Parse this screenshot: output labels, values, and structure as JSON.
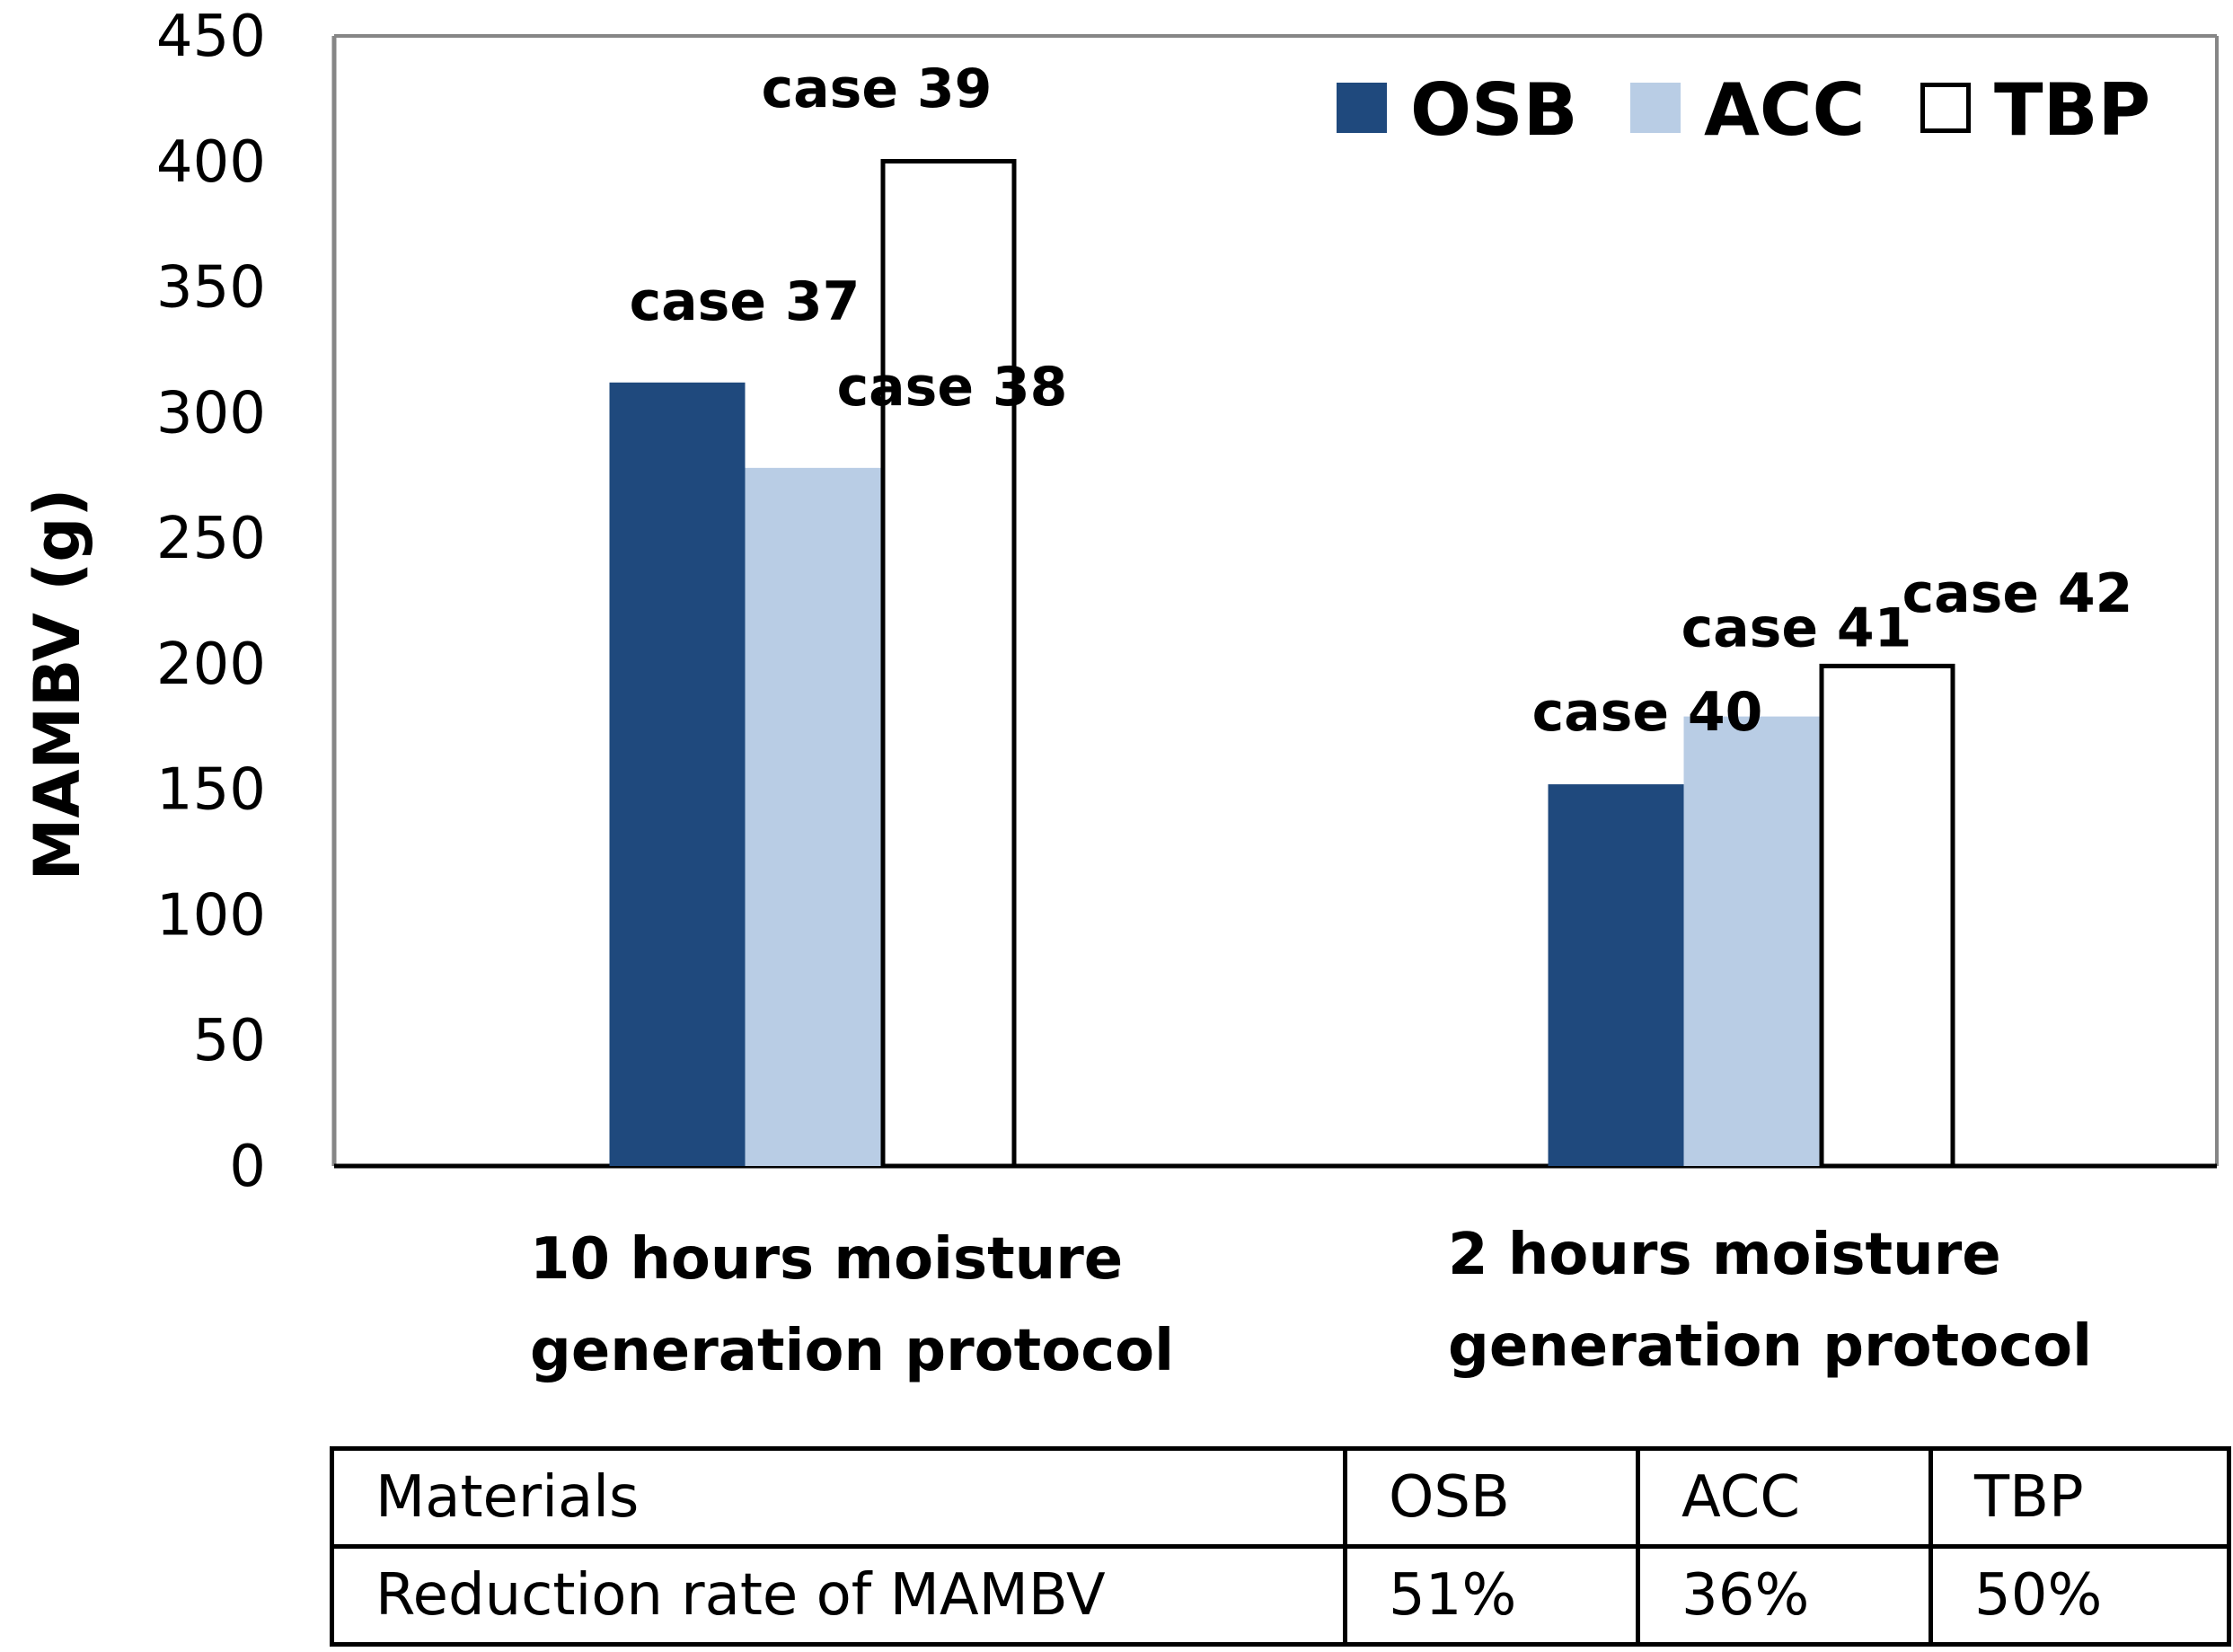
{
  "chart_data": {
    "type": "bar",
    "title": "",
    "xlabel": "",
    "ylabel": "MAMBV (g)",
    "ylim": [
      0,
      450
    ],
    "yticks": [
      0,
      50,
      100,
      150,
      200,
      250,
      300,
      350,
      400,
      450
    ],
    "grid": false,
    "legend_position": "top-right",
    "categories": [
      "10 hours moisture generation protocol",
      "2 hours moisture generation protocol"
    ],
    "category_lines": [
      [
        "10 hours moisture",
        "generation protocol"
      ],
      [
        "2 hours moisture",
        "generation protocol"
      ]
    ],
    "series": [
      {
        "name": "OSB",
        "color": "#1f497d",
        "outlined": false,
        "values": [
          312,
          152
        ],
        "labels": [
          "case 37",
          "case 40"
        ]
      },
      {
        "name": "ACC",
        "color": "#b9cde5",
        "outlined": false,
        "values": [
          278,
          179
        ],
        "labels": [
          "case 38",
          "case 41"
        ]
      },
      {
        "name": "TBP",
        "color": "#ffffff",
        "outlined": true,
        "values": [
          401,
          200
        ],
        "labels": [
          "case 39",
          "case 42"
        ]
      }
    ]
  },
  "table": {
    "rows": [
      [
        "Materials",
        "OSB",
        "ACC",
        "TBP"
      ],
      [
        "Reduction rate of MAMBV",
        "51%",
        "36%",
        "50%"
      ]
    ]
  }
}
